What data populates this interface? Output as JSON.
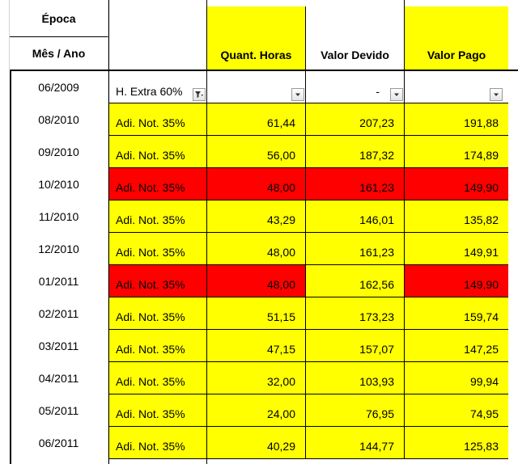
{
  "header": {
    "epoca": "Época",
    "mes_ano": "Mês / Ano",
    "quant_horas": "Quant. Horas",
    "valor_devido": "Valor Devido",
    "valor_pago": "Valor Pago"
  },
  "filter_row": {
    "date": "06/2009",
    "label": "H. Extra 60%",
    "valor_devido": "-"
  },
  "rows": [
    {
      "date": "08/2010",
      "label": "Adi. Not. 35%",
      "horas": "61,44",
      "devido": "207,23",
      "pago": "191,88"
    },
    {
      "date": "09/2010",
      "label": "Adi. Not. 35%",
      "horas": "56,00",
      "devido": "187,32",
      "pago": "174,89"
    },
    {
      "date": "10/2010",
      "label": "Adi. Not. 35%",
      "horas": "48,00",
      "devido": "161,23",
      "pago": "149,90"
    },
    {
      "date": "11/2010",
      "label": "Adi. Not. 35%",
      "horas": "43,29",
      "devido": "146,01",
      "pago": "135,82"
    },
    {
      "date": "12/2010",
      "label": "Adi. Not. 35%",
      "horas": "48,00",
      "devido": "161,23",
      "pago": "149,91"
    },
    {
      "date": "01/2011",
      "label": "Adi. Not. 35%",
      "horas": "48,00",
      "devido": "162,56",
      "pago": "149,90"
    },
    {
      "date": "02/2011",
      "label": "Adi. Not. 35%",
      "horas": "51,15",
      "devido": "173,23",
      "pago": "159,74"
    },
    {
      "date": "03/2011",
      "label": "Adi. Not. 35%",
      "horas": "47,15",
      "devido": "157,07",
      "pago": "147,25"
    },
    {
      "date": "04/2011",
      "label": "Adi. Not. 35%",
      "horas": "32,00",
      "devido": "103,93",
      "pago": "99,94"
    },
    {
      "date": "05/2011",
      "label": "Adi. Not. 35%",
      "horas": "24,00",
      "devido": "76,95",
      "pago": "74,95"
    },
    {
      "date": "06/2011",
      "label": "Adi. Not. 35%",
      "horas": "40,29",
      "devido": "144,77",
      "pago": "125,83"
    }
  ],
  "colors": {
    "highlight_yellow": "#ffff00",
    "highlight_red": "#ff0000",
    "gridline": "#d4d4d4"
  },
  "icons": {
    "filter_active": "filter-funnel-icon",
    "dropdown": "chevron-down-icon"
  }
}
